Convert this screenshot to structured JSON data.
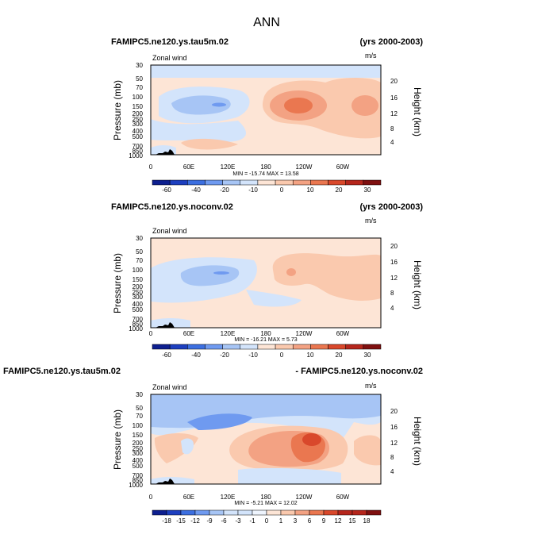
{
  "figure_title": "ANN",
  "colors": {
    "neg_deep": "#0d1f8f",
    "neg_2": "#1d3fbf",
    "neg_3": "#3c6fe0",
    "neg_4": "#6f9af0",
    "neg_5": "#a7c5f5",
    "neg_6": "#d3e4fb",
    "pos_1": "#fde5d6",
    "pos_2": "#fac9ae",
    "pos_3": "#f3a283",
    "pos_4": "#ea7750",
    "pos_5": "#d9482b",
    "pos_6": "#b5261c",
    "pos_7": "#7f1010",
    "topo": "#000000"
  },
  "chart_data": [
    {
      "type": "heatmap",
      "case": "FAMIPC5.ne120.ys.tau5m.02",
      "years": "(yrs 2000-2003)",
      "variable": "Zonal wind",
      "units": "m/s",
      "ylabel": "Pressure (mb)",
      "y2label": "Height (km)",
      "x_ticks": [
        "0",
        "60E",
        "120E",
        "180",
        "120W",
        "60W"
      ],
      "y_ticks": [
        "30",
        "50",
        "70",
        "100",
        "150",
        "200",
        "250",
        "300",
        "400",
        "500",
        "700",
        "850",
        "1000"
      ],
      "y2_ticks": [
        "20",
        "16",
        "12",
        "8",
        "4"
      ],
      "stats": "MIN = -15.74   MAX = 13.58",
      "colorbar_labels": [
        "-60",
        "-40",
        "-20",
        "-10",
        "0",
        "10",
        "20",
        "30"
      ],
      "features": [
        {
          "lon": 35,
          "lev": 150,
          "value": -12
        },
        {
          "lon": 233,
          "lev": 150,
          "value": 13.58
        },
        {
          "lon": 325,
          "lev": 150,
          "value": 8
        },
        {
          "lon": 30,
          "lev": 700,
          "value": 4
        }
      ]
    },
    {
      "type": "heatmap",
      "case": "FAMIPC5.ne120.ys.noconv.02",
      "years": "(yrs 2000-2003)",
      "variable": "Zonal wind",
      "units": "m/s",
      "ylabel": "Pressure (mb)",
      "y2label": "Height (km)",
      "x_ticks": [
        "0",
        "60E",
        "120E",
        "180",
        "120W",
        "60W"
      ],
      "y_ticks": [
        "30",
        "50",
        "70",
        "100",
        "150",
        "200",
        "250",
        "300",
        "400",
        "500",
        "700",
        "850",
        "1000"
      ],
      "y2_ticks": [
        "20",
        "16",
        "12",
        "8",
        "4"
      ],
      "stats": "MIN = -16.21   MAX = 5.73",
      "colorbar_labels": [
        "-60",
        "-40",
        "-20",
        "-10",
        "0",
        "10",
        "20",
        "30"
      ],
      "features": [
        {
          "lon": 95,
          "lev": 150,
          "value": -16.21
        },
        {
          "lon": 185,
          "lev": 150,
          "value": 5.73
        },
        {
          "lon": 240,
          "lev": 500,
          "value": 3
        }
      ]
    },
    {
      "type": "heatmap",
      "case": "FAMIPC5.ne120.ys.tau5m.02",
      "case2": "- FAMIPC5.ne120.ys.noconv.02",
      "variable": "Zonal wind",
      "units": "m/s",
      "ylabel": "Pressure (mb)",
      "y2label": "Height (km)",
      "x_ticks": [
        "0",
        "60E",
        "120E",
        "180",
        "120W",
        "60W"
      ],
      "y_ticks": [
        "30",
        "50",
        "70",
        "100",
        "150",
        "200",
        "250",
        "300",
        "400",
        "500",
        "700",
        "850",
        "1000"
      ],
      "y2_ticks": [
        "20",
        "16",
        "12",
        "8",
        "4"
      ],
      "stats": "MIN = -5.21   MAX = 12.02",
      "colorbar_labels": [
        "-18",
        "-15",
        "-12",
        "-9",
        "-6",
        "-3",
        "-1",
        "0",
        "1",
        "3",
        "6",
        "9",
        "12",
        "15",
        "18"
      ],
      "features": [
        {
          "lon": 230,
          "lev": 200,
          "value": 12.02
        },
        {
          "lon": 100,
          "lev": 70,
          "value": -5.21
        },
        {
          "lon": 30,
          "lev": 250,
          "value": 3
        }
      ]
    }
  ]
}
